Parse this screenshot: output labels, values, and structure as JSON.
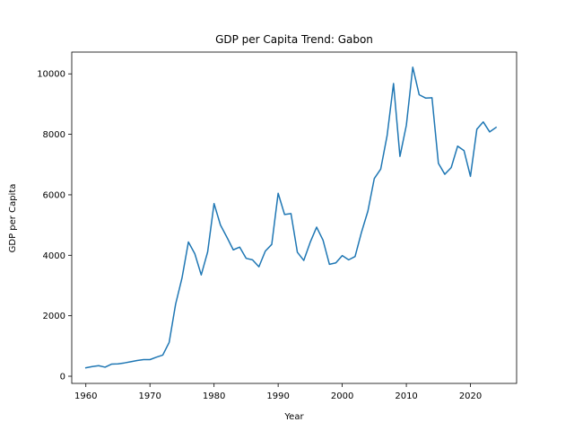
{
  "chart_data": {
    "type": "line",
    "title": "GDP per Capita Trend: Gabon",
    "xlabel": "Year",
    "ylabel": "GDP per Capita",
    "xlim": [
      1957.8,
      2027.2
    ],
    "ylim": [
      -237,
      10720
    ],
    "xticks": [
      1960,
      1970,
      1980,
      1990,
      2000,
      2010,
      2020
    ],
    "yticks": [
      0,
      2000,
      4000,
      6000,
      8000,
      10000
    ],
    "grid": false,
    "color": "#1f77b4",
    "series": [
      {
        "x": [
          1960,
          1961,
          1962,
          1963,
          1964,
          1965,
          1966,
          1967,
          1968,
          1969,
          1970,
          1971,
          1972,
          1973,
          1974,
          1975,
          1976,
          1977,
          1978,
          1979,
          1980,
          1981,
          1982,
          1983,
          1984,
          1985,
          1986,
          1987,
          1988,
          1989,
          1990,
          1991,
          1992,
          1993,
          1994,
          1995,
          1996,
          1997,
          1998,
          1999,
          2000,
          2001,
          2002,
          2003,
          2004,
          2005,
          2006,
          2007,
          2008,
          2009,
          2010,
          2011,
          2012,
          2013,
          2014,
          2015,
          2016,
          2017,
          2018,
          2019,
          2020,
          2021,
          2022,
          2023,
          2024
        ],
        "values": [
          280,
          320,
          350,
          300,
          400,
          410,
          440,
          480,
          520,
          550,
          550,
          630,
          700,
          1120,
          2380,
          3250,
          4440,
          4050,
          3350,
          4110,
          5710,
          5000,
          4600,
          4180,
          4270,
          3900,
          3850,
          3620,
          4140,
          4360,
          6050,
          5350,
          5380,
          4100,
          3830,
          4430,
          4930,
          4500,
          3700,
          3750,
          3990,
          3850,
          3960,
          4760,
          5460,
          6540,
          6850,
          7960,
          9680,
          7270,
          8300,
          10220,
          9310,
          9200,
          9210,
          7040,
          6680,
          6900,
          7610,
          7460,
          6610,
          8170,
          8410,
          8080,
          8230
        ]
      }
    ]
  }
}
